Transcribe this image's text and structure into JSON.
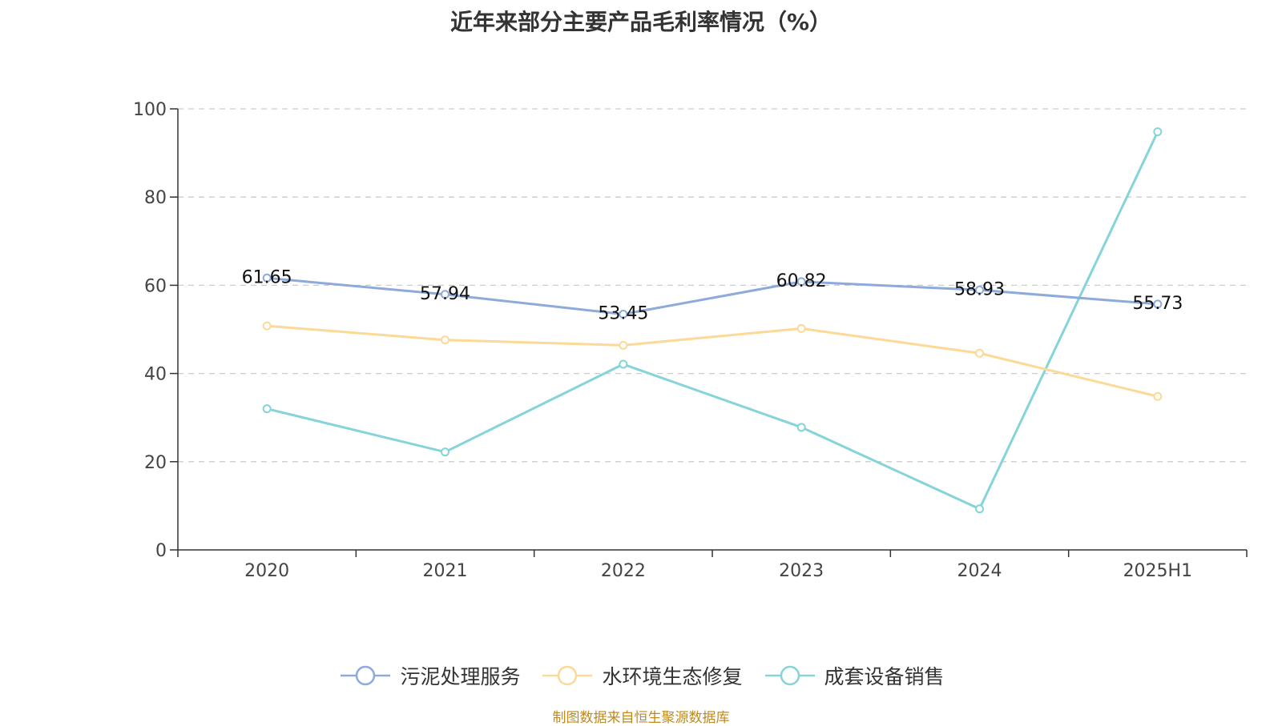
{
  "chart_data": {
    "type": "line",
    "title": "近年来部分主要产品毛利率情况（%）",
    "categories": [
      "2020",
      "2021",
      "2022",
      "2023",
      "2024",
      "2025H1"
    ],
    "ylim": [
      0,
      100
    ],
    "yticks": [
      0,
      20,
      40,
      60,
      80,
      100
    ],
    "grid": true,
    "legend_position": "bottom",
    "series": [
      {
        "name": "污泥处理服务",
        "color": "#8eaadb",
        "values": [
          61.65,
          57.94,
          53.45,
          60.82,
          58.93,
          55.73
        ],
        "labels": [
          "61.65",
          "57.94",
          "53.45",
          "60.82",
          "58.93",
          "55.73"
        ]
      },
      {
        "name": "水环境生态修复",
        "color": "#fcd996",
        "values": [
          50.8,
          47.6,
          46.4,
          50.2,
          44.6,
          34.8
        ]
      },
      {
        "name": "成套设备销售",
        "color": "#84d4d8",
        "values": [
          32.0,
          22.2,
          42.1,
          27.8,
          9.3,
          94.8
        ]
      }
    ]
  },
  "source_note": "制图数据来自恒生聚源数据库"
}
